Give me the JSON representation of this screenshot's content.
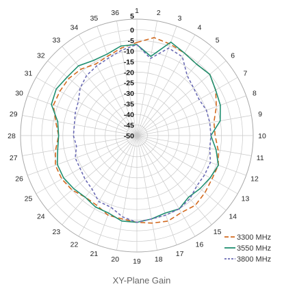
{
  "chart_data": {
    "type": "polar-line",
    "title": "XY-Plane Gain",
    "direction_labels": [
      "1",
      "2",
      "3",
      "4",
      "5",
      "6",
      "7",
      "8",
      "9",
      "10",
      "11",
      "12",
      "13",
      "14",
      "15",
      "16",
      "17",
      "18",
      "19",
      "20",
      "21",
      "22",
      "23",
      "24",
      "25",
      "26",
      "27",
      "28",
      "29",
      "30",
      "31",
      "32",
      "33",
      "34",
      "35",
      "36"
    ],
    "radial_labels": [
      "5",
      "0",
      "-5",
      "-10",
      "-15",
      "-20",
      "-25",
      "-30",
      "-35",
      "-40",
      "-45",
      "-50"
    ],
    "rlim": [
      -50,
      5
    ],
    "legend_position": "bottom-right",
    "series": [
      {
        "name": "3300 MHz",
        "color": "#d2691e",
        "dash": "dashed",
        "values": [
          -6,
          -3,
          -4,
          -5,
          -6,
          -5,
          -7,
          -10,
          -13,
          -13,
          -11,
          -9,
          -9,
          -8,
          -7,
          -8,
          -7,
          -8,
          -9,
          -10,
          -10,
          -12,
          -12,
          -10,
          -9,
          -9,
          -11,
          -13,
          -11,
          -8,
          -8,
          -8,
          -9,
          -11,
          -10,
          -8
        ]
      },
      {
        "name": "3550 MHz",
        "color": "#1f8f70",
        "dash": "solid",
        "values": [
          -7,
          -12,
          -3,
          -5,
          -6,
          -5,
          -7,
          -8,
          -10,
          -15,
          -12,
          -9,
          -10,
          -11,
          -12,
          -10,
          -11,
          -10,
          -9,
          -9,
          -11,
          -11,
          -12,
          -11,
          -10,
          -10,
          -12,
          -13,
          -12,
          -7,
          -6,
          -7,
          -7,
          -9,
          -9,
          -7
        ]
      },
      {
        "name": "3800 MHz",
        "color": "#6a6ab4",
        "dash": "short-dashed",
        "values": [
          -7,
          -13,
          -6,
          -7,
          -13,
          -15,
          -16,
          -15,
          -15,
          -15,
          -15,
          -13,
          -13,
          -13,
          -11,
          -10,
          -10,
          -10,
          -9,
          -11,
          -14,
          -14,
          -17,
          -18,
          -19,
          -19,
          -21,
          -20,
          -20,
          -19,
          -18,
          -15,
          -13,
          -12,
          -11,
          -9
        ]
      }
    ]
  }
}
